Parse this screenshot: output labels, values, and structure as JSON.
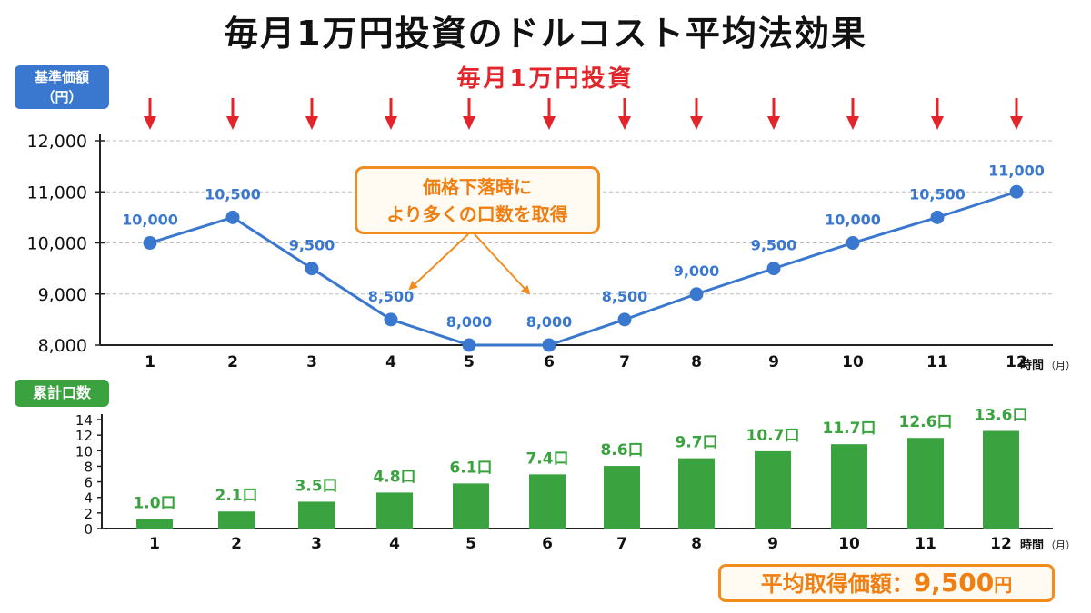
{
  "title": "毎月1万円投資のドルコスト平均法効果",
  "invest_label": "毎月1万円投資",
  "callout": {
    "line1": "価格下落時に",
    "line2": "より多くの口数を取得"
  },
  "average_box": {
    "label": "平均取得価額：",
    "value": "9,500",
    "unit": "円"
  },
  "colors": {
    "price_line": "#3a78cf",
    "bars": "#3aa33f",
    "arrows": "#e3242b",
    "callout": "#f28c1e"
  },
  "chart_data": [
    {
      "type": "line",
      "badge_line1": "基準価額",
      "badge_line2": "（円）",
      "x": [
        "1",
        "2",
        "3",
        "4",
        "5",
        "6",
        "7",
        "8",
        "9",
        "10",
        "11",
        "12"
      ],
      "values": [
        10000,
        10500,
        9500,
        8500,
        8000,
        8000,
        8500,
        9000,
        9500,
        10000,
        10500,
        11000
      ],
      "value_labels": [
        "10,000",
        "10,500",
        "9,500",
        "8,500",
        "8,000",
        "8,000",
        "8,500",
        "9,000",
        "9,500",
        "10,000",
        "10,500",
        "11,000"
      ],
      "yticks": [
        8000,
        9000,
        10000,
        11000,
        12000
      ],
      "ytick_labels": [
        "8,000",
        "9,000",
        "10,000",
        "11,000",
        "12,000"
      ],
      "ylim": [
        8000,
        12000
      ],
      "xlabel_main": "時間",
      "xlabel_unit": "（月）",
      "grid": true
    },
    {
      "type": "bar",
      "badge": "累計口数",
      "categories": [
        "1",
        "2",
        "3",
        "4",
        "5",
        "6",
        "7",
        "8",
        "9",
        "10",
        "11",
        "12"
      ],
      "values": [
        1.0,
        2.1,
        3.5,
        4.8,
        6.1,
        7.4,
        8.6,
        9.7,
        10.7,
        11.7,
        12.6,
        13.6
      ],
      "value_labels": [
        "1.0口",
        "2.1口",
        "3.5口",
        "4.8口",
        "6.1口",
        "7.4口",
        "8.6口",
        "9.7口",
        "10.7口",
        "11.7口",
        "12.6口",
        "13.6口"
      ],
      "yticks": [
        0,
        2,
        4,
        6,
        8,
        10,
        12,
        14
      ],
      "ytick_labels": [
        "0",
        "2",
        "4",
        "6",
        "8",
        "10",
        "12",
        "14"
      ],
      "ylim": [
        0,
        14
      ],
      "xlabel_main": "時間",
      "xlabel_unit": "（月）"
    }
  ]
}
